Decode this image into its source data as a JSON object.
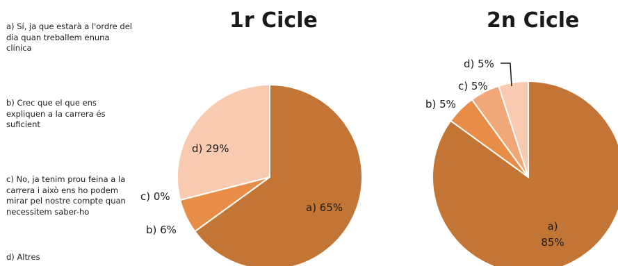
{
  "legend": {
    "a": "a) Sí, ja que estarà a l'ordre del dia quan treballem enuna clínica",
    "b": "b) Crec que el que ens expliquen a la carrera és suficient",
    "c": "c) No, ja tenim prou feina a la carrera i això ens ho podem mirar pel nostre compte quan necessitem saber-ho",
    "d": "d) Altres"
  },
  "chart_data": [
    {
      "type": "pie",
      "title": "1r Cicle",
      "categories": [
        "a)",
        "b)",
        "c)",
        "d)"
      ],
      "values": [
        65,
        6,
        0,
        29
      ],
      "labels": [
        "a) 65%",
        "b) 6%",
        "c) 0%",
        "d) 29%"
      ],
      "colors": [
        "#C37535",
        "#E88D47",
        "#F2A779",
        "#F8CAB0"
      ]
    },
    {
      "type": "pie",
      "title": "2n Cicle",
      "categories": [
        "a)",
        "b)",
        "c)",
        "d)"
      ],
      "values": [
        85,
        5,
        5,
        5
      ],
      "labels": [
        "a) 85%",
        "b) 5%",
        "c) 5%",
        "d) 5%"
      ],
      "colors": [
        "#C37535",
        "#E88D47",
        "#F2A779",
        "#F8CAB0"
      ]
    }
  ]
}
